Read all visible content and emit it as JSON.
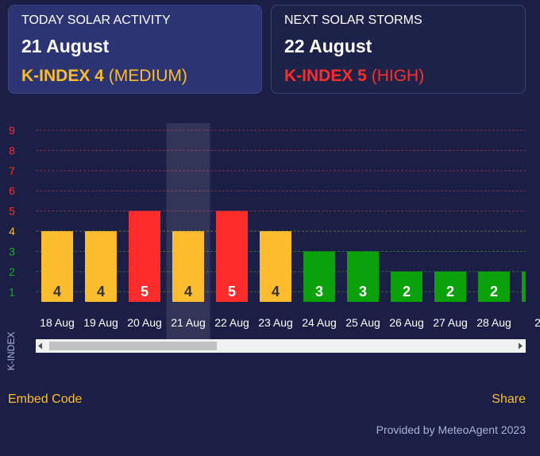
{
  "today": {
    "label": "TODAY SOLAR ACTIVITY",
    "date": "21 August",
    "k_prefix": "K-INDEX 4",
    "k_level": "(MEDIUM)"
  },
  "next": {
    "label": "NEXT SOLAR STORMS",
    "date": "22 August",
    "k_prefix": "K-INDEX 5",
    "k_level": "(HIGH)"
  },
  "footer": {
    "embed": "Embed Code",
    "share": "Share",
    "provided": "Provided by MeteoAgent 2023"
  },
  "colors": {
    "low": "#0aa10a",
    "medium": "#fbbd2e",
    "high": "#ff2c2c",
    "background": "#1b1f45"
  },
  "chart_data": {
    "type": "bar",
    "ylabel": "K-INDEX",
    "ylim": [
      1,
      9
    ],
    "yticks": [
      1,
      2,
      3,
      4,
      5,
      6,
      7,
      8,
      9
    ],
    "highlighted_category": "21 Aug",
    "categories": [
      "18 Aug",
      "19 Aug",
      "20 Aug",
      "21 Aug",
      "22 Aug",
      "23 Aug",
      "24 Aug",
      "25 Aug",
      "26 Aug",
      "27 Aug",
      "28 Aug",
      "2"
    ],
    "values": [
      4,
      4,
      5,
      4,
      5,
      4,
      3,
      3,
      2,
      2,
      2,
      2
    ]
  }
}
